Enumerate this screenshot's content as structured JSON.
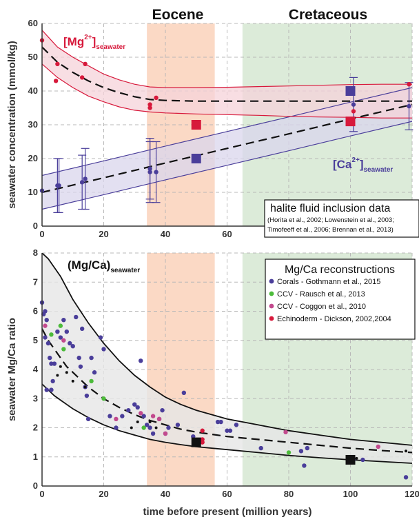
{
  "eras": [
    {
      "name": "Eocene",
      "start": 34,
      "end": 56,
      "color": "#fbd9c5"
    },
    {
      "name": "Cretaceous",
      "start": 65,
      "end": 120,
      "color": "#dcebd9"
    }
  ],
  "xaxis": {
    "label": "time before present (million years)",
    "lim": [
      0,
      120
    ],
    "ticks": [
      0,
      20,
      40,
      60,
      80,
      100,
      120
    ]
  },
  "chart_data": [
    {
      "type": "line",
      "ylabel": "seawater concentration (mmol/kg)",
      "ylim": [
        0,
        60
      ],
      "yticks": [
        0,
        10,
        20,
        30,
        40,
        50,
        60
      ],
      "grid": true,
      "colors": {
        "mg": "#d7193b",
        "ca": "#4a3e9a",
        "mg_band": "#f6d3da",
        "ca_band": "#d9d5ec"
      },
      "mg_label": {
        "base": "[Mg",
        "sup": "2+",
        "close": "]",
        "sub": "seawater"
      },
      "ca_label": {
        "base": "[Ca",
        "sup": "2+",
        "close": "]",
        "sub": "seawater"
      },
      "mg_curve": {
        "x": [
          0,
          5,
          10,
          15,
          20,
          25,
          30,
          35,
          40,
          50,
          60,
          70,
          80,
          90,
          100,
          110,
          120
        ],
        "mid": [
          53,
          48.5,
          45.5,
          43,
          41,
          39.5,
          38.3,
          37.5,
          37.2,
          37,
          37,
          37,
          37,
          37,
          37,
          37,
          37
        ],
        "upper": [
          58,
          53,
          50,
          47.5,
          45,
          43.3,
          42,
          41.2,
          41,
          41,
          41.1,
          41.3,
          41.5,
          41.7,
          41.9,
          42,
          42
        ],
        "lower": [
          48,
          44,
          41,
          38.5,
          36.8,
          35.3,
          34.3,
          33.8,
          33.5,
          33.2,
          33,
          32.8,
          32.5,
          32.3,
          32.2,
          32,
          32
        ]
      },
      "ca_curve": {
        "x": [
          0,
          20,
          40,
          60,
          80,
          100,
          120
        ],
        "mid": [
          10,
          14.3,
          18.7,
          23,
          27.3,
          31.7,
          36
        ],
        "upper": [
          15,
          19.3,
          23.7,
          28,
          32.3,
          36.7,
          41
        ],
        "lower": [
          5,
          9.3,
          13.7,
          18,
          22.3,
          26.7,
          31
        ]
      },
      "mg_points": [
        [
          0,
          55
        ],
        [
          5,
          48
        ],
        [
          4.5,
          43
        ],
        [
          13,
          44
        ],
        [
          14,
          48
        ],
        [
          35,
          35
        ],
        [
          35,
          36
        ],
        [
          37,
          38
        ],
        [
          101,
          34
        ],
        [
          119,
          42
        ]
      ],
      "ca_points": [
        {
          "x": 0,
          "y": 10.5
        },
        {
          "x": 5,
          "y": 12,
          "err": 8
        },
        {
          "x": 5.5,
          "y": 12,
          "err": 8
        },
        {
          "x": 13,
          "y": 13,
          "err": 8
        },
        {
          "x": 14,
          "y": 14,
          "err": 9
        },
        {
          "x": 35,
          "y": 16,
          "err": 9
        },
        {
          "x": 35,
          "y": 17,
          "err": 9
        },
        {
          "x": 37,
          "y": 16,
          "err": 9
        },
        {
          "x": 101,
          "y": 36,
          "err": 8
        },
        {
          "x": 119,
          "y": 35.5,
          "err": 7
        }
      ],
      "mg_squares": [
        [
          50,
          30
        ],
        [
          100,
          31
        ]
      ],
      "ca_squares": [
        [
          50,
          20
        ],
        [
          100,
          40
        ]
      ],
      "infobox": {
        "title": "halite fluid inclusion data",
        "cite1": "(Horita et al., 2002; Lowenstein et al., 2003;",
        "cite2": "Timofeeff et al., 2006; Brennan et al., 2013)"
      }
    },
    {
      "type": "scatter",
      "ylabel": "seawater Mg/Ca ratio",
      "ylim": [
        0,
        8
      ],
      "yticks": [
        0,
        1,
        2,
        3,
        4,
        5,
        6,
        7,
        8
      ],
      "grid": true,
      "curve_label": {
        "base": "(Mg/Ca)",
        "sub": "seawater"
      },
      "band_curve": {
        "x": [
          0,
          2,
          4,
          6,
          8,
          10,
          15,
          20,
          25,
          30,
          35,
          40,
          45,
          50,
          60,
          70,
          80,
          90,
          100,
          110,
          120
        ],
        "upper": [
          8,
          7.8,
          7.5,
          7.2,
          6.8,
          6.4,
          5.6,
          4.9,
          4.3,
          3.8,
          3.4,
          3.05,
          2.8,
          2.6,
          2.3,
          2.1,
          1.9,
          1.75,
          1.6,
          1.5,
          1.4
        ],
        "mid": [
          5.4,
          5.0,
          4.7,
          4.4,
          4.1,
          3.9,
          3.4,
          3.0,
          2.7,
          2.45,
          2.25,
          2.1,
          1.95,
          1.85,
          1.7,
          1.6,
          1.5,
          1.4,
          1.3,
          1.22,
          1.15
        ],
        "lower": [
          3.5,
          3.3,
          3.1,
          2.95,
          2.8,
          2.65,
          2.35,
          2.1,
          1.9,
          1.75,
          1.6,
          1.5,
          1.42,
          1.35,
          1.25,
          1.15,
          1.05,
          0.97,
          0.9,
          0.84,
          0.78
        ]
      },
      "legend": {
        "title": "Mg/Ca reconstructions",
        "items": [
          {
            "label": "Corals - Gothmann et al., 2015",
            "color": "#4a3e9a"
          },
          {
            "label": "CCV - Rausch et al., 2013",
            "color": "#4cbb3a"
          },
          {
            "label": "CCV - Coggon et al., 2010",
            "color": "#c2498d"
          },
          {
            "label": "Echinoderm - Dickson, 2002,2004",
            "color": "#d7193b"
          }
        ]
      },
      "series": [
        {
          "name": "Corals - Gothmann et al., 2015",
          "color": "#4a3e9a",
          "points": [
            [
              0,
              6.3
            ],
            [
              0.5,
              5.9
            ],
            [
              1,
              6.0
            ],
            [
              1.5,
              5.7
            ],
            [
              1,
              5.1
            ],
            [
              2,
              4.9
            ],
            [
              2.5,
              4.4
            ],
            [
              3,
              4.2
            ],
            [
              3.5,
              3.6
            ],
            [
              3,
              3.3
            ],
            [
              1.5,
              3.3
            ],
            [
              4,
              4.2
            ],
            [
              5,
              5.3
            ],
            [
              6,
              5.1
            ],
            [
              7,
              5.7
            ],
            [
              8,
              5.3
            ],
            [
              9,
              4.9
            ],
            [
              10,
              4.8
            ],
            [
              11,
              5.8
            ],
            [
              12,
              4.4
            ],
            [
              12.5,
              4.1
            ],
            [
              13,
              5.4
            ],
            [
              14,
              3.4
            ],
            [
              14.5,
              3.1
            ],
            [
              15,
              2.3
            ],
            [
              16,
              4.4
            ],
            [
              17,
              3.9
            ],
            [
              19,
              5.1
            ],
            [
              20,
              4.7
            ],
            [
              22,
              2.4
            ],
            [
              24,
              2.0
            ],
            [
              26,
              2.4
            ],
            [
              28,
              2.6
            ],
            [
              30,
              2.8
            ],
            [
              31,
              2.7
            ],
            [
              32,
              4.3
            ],
            [
              33,
              2.4
            ],
            [
              34,
              2.1
            ],
            [
              35,
              2.0
            ],
            [
              36,
              1.8
            ],
            [
              38,
              2.3
            ],
            [
              39,
              2.6
            ],
            [
              40,
              1.8
            ],
            [
              41,
              2.0
            ],
            [
              44,
              2.1
            ],
            [
              46,
              3.2
            ],
            [
              49,
              1.7
            ],
            [
              57,
              2.2
            ],
            [
              58,
              2.2
            ],
            [
              60,
              1.9
            ],
            [
              61,
              1.9
            ],
            [
              63,
              2.1
            ],
            [
              71,
              1.3
            ],
            [
              84,
              1.2
            ],
            [
              85,
              0.7
            ],
            [
              86,
              1.3
            ],
            [
              101,
              0.9
            ],
            [
              104,
              0.9
            ],
            [
              118,
              0.3
            ]
          ]
        },
        {
          "name": "CCV - Rausch et al., 2013",
          "color": "#4cbb3a",
          "points": [
            [
              3,
              5.2
            ],
            [
              6,
              5.5
            ],
            [
              7,
              4.7
            ],
            [
              16,
              3.6
            ],
            [
              20,
              3.0
            ],
            [
              33,
              2.0
            ],
            [
              80,
              1.15
            ]
          ]
        },
        {
          "name": "CCV - Coggon et al., 2010",
          "color": "#c2498d",
          "points": [
            [
              1,
              5.5
            ],
            [
              7,
              5.0
            ],
            [
              24,
              2.3
            ],
            [
              32,
              2.5
            ],
            [
              36,
              2.4
            ],
            [
              38,
              2.3
            ],
            [
              40,
              1.8
            ],
            [
              79,
              1.85
            ],
            [
              109,
              1.35
            ]
          ]
        },
        {
          "name": "Echinoderm - Dickson, 2002,2004",
          "color": "#d7193b",
          "points": [
            [
              52,
              1.9
            ],
            [
              52,
              1.6
            ],
            [
              52,
              1.5
            ]
          ]
        },
        {
          "name": "",
          "color": "#111111",
          "points": [
            [
              5,
              3.8
            ],
            [
              6,
              4.1
            ],
            [
              8,
              3.9
            ],
            [
              10,
              3.6
            ],
            [
              14,
              3.4
            ],
            [
              29,
              2.0
            ],
            [
              31,
              2.2
            ],
            [
              35,
              2.2
            ],
            [
              37,
              2.0
            ],
            [
              102,
              0.95
            ],
            [
              118,
              1.2
            ]
          ]
        }
      ],
      "black_squares": [
        [
          50,
          1.5
        ],
        [
          100,
          0.9
        ]
      ]
    }
  ]
}
